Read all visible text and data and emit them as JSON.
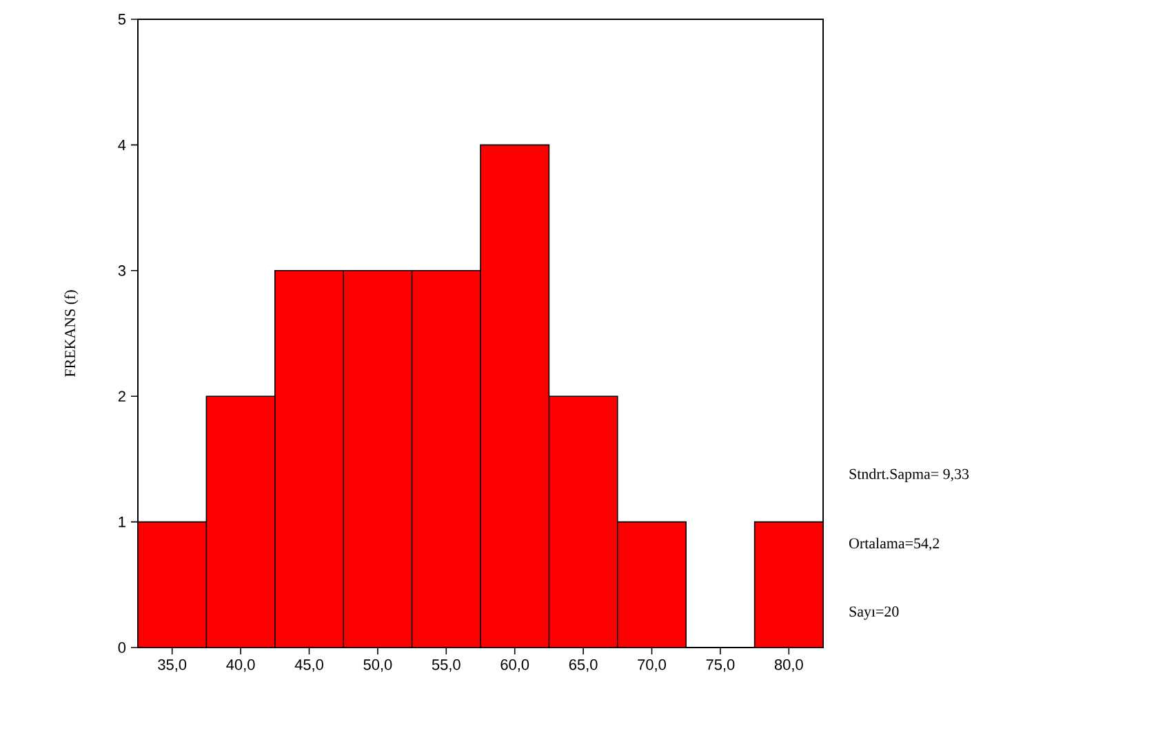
{
  "chart_data": {
    "type": "histogram",
    "ylabel": "FREKANS (f)",
    "bins": [
      32.5,
      37.5,
      42.5,
      47.5,
      52.5,
      57.5,
      62.5,
      67.5,
      72.5,
      77.5,
      82.5
    ],
    "values": [
      1,
      2,
      3,
      3,
      3,
      4,
      2,
      1,
      0,
      1
    ],
    "color": "#ff0000",
    "xlim": [
      32.5,
      82.5
    ],
    "ylim": [
      0,
      5
    ],
    "xticks": [
      {
        "value": 35,
        "label": "35,0"
      },
      {
        "value": 40,
        "label": "40,0"
      },
      {
        "value": 45,
        "label": "45,0"
      },
      {
        "value": 50,
        "label": "50,0"
      },
      {
        "value": 55,
        "label": "55,0"
      },
      {
        "value": 60,
        "label": "60,0"
      },
      {
        "value": 65,
        "label": "65,0"
      },
      {
        "value": 70,
        "label": "70,0"
      },
      {
        "value": 75,
        "label": "75,0"
      },
      {
        "value": 80,
        "label": "80,0"
      }
    ],
    "yticks": [
      0,
      1,
      2,
      3,
      4,
      5
    ],
    "annotations": [
      "Stndrt.Sapma= 9,33",
      "Ortalama=54,2",
      "Sayı=20"
    ]
  }
}
